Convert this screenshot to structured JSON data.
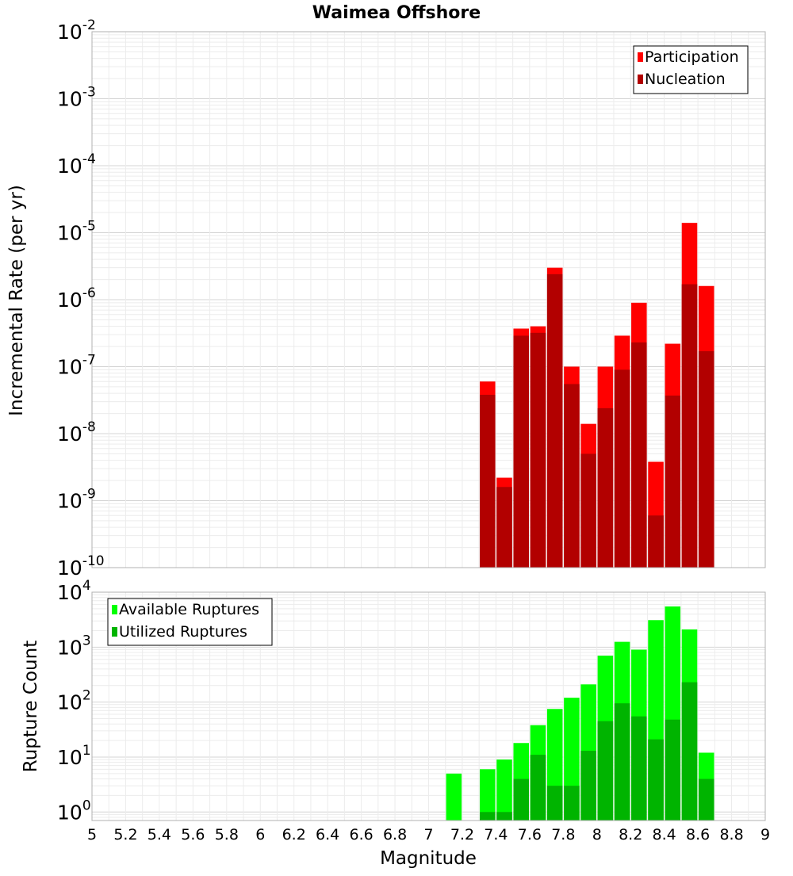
{
  "chart_data": {
    "title": "Waimea Offshore",
    "x_axis": {
      "label": "Magnitude",
      "range": [
        5,
        9
      ],
      "ticks": [
        5,
        5.2,
        5.4,
        5.6,
        5.8,
        6,
        6.2,
        6.4,
        6.6,
        6.8,
        7,
        7.2,
        7.4,
        7.6,
        7.8,
        8,
        8.2,
        8.4,
        8.6,
        8.8,
        9
      ],
      "tick_labels": [
        "5",
        "5.2",
        "5.4",
        "5.6",
        "5.8",
        "6",
        "6.2",
        "6.4",
        "6.6",
        "6.8",
        "7",
        "7.2",
        "7.4",
        "7.6",
        "7.8",
        "8",
        "8.2",
        "8.4",
        "8.6",
        "8.8",
        "9"
      ]
    },
    "panels": [
      {
        "type": "bar",
        "ylabel": "Incremental Rate (per yr)",
        "yscale": "log",
        "ylim": [
          1e-10,
          0.01
        ],
        "yticks": [
          {
            "base": "10",
            "exp": "-2"
          },
          {
            "base": "10",
            "exp": "-3"
          },
          {
            "base": "10",
            "exp": "-4"
          },
          {
            "base": "10",
            "exp": "-5"
          },
          {
            "base": "10",
            "exp": "-6"
          },
          {
            "base": "10",
            "exp": "-7"
          },
          {
            "base": "10",
            "exp": "-8"
          },
          {
            "base": "10",
            "exp": "-9"
          },
          {
            "base": "10",
            "exp": "-10"
          }
        ],
        "grid": true,
        "legend_position": "top-right",
        "x": [
          7.35,
          7.45,
          7.55,
          7.65,
          7.75,
          7.85,
          7.95,
          8.05,
          8.15,
          8.25,
          8.35,
          8.45,
          8.55,
          8.65
        ],
        "series": [
          {
            "name": "Participation",
            "color": "#ff0000",
            "values": [
              6e-08,
              2.2e-09,
              3.7e-07,
              4e-07,
              3e-06,
              1e-07,
              1.4e-08,
              1e-07,
              2.9e-07,
              9e-07,
              3.8e-09,
              2.2e-07,
              1.4e-05,
              1.6e-06
            ]
          },
          {
            "name": "Nucleation",
            "color": "#b20000",
            "values": [
              3.8e-08,
              1.6e-09,
              2.9e-07,
              3.2e-07,
              2.4e-06,
              5.5e-08,
              5e-09,
              2.4e-08,
              9e-08,
              2.3e-07,
              6e-10,
              3.7e-08,
              1.7e-06,
              1.7e-07
            ]
          }
        ]
      },
      {
        "type": "bar",
        "ylabel": "Rupture Count",
        "yscale": "log",
        "ylim": [
          0.7,
          10000
        ],
        "yticks": [
          {
            "base": "10",
            "exp": "4"
          },
          {
            "base": "10",
            "exp": "3"
          },
          {
            "base": "10",
            "exp": "2"
          },
          {
            "base": "10",
            "exp": "1"
          },
          {
            "base": "10",
            "exp": "0"
          }
        ],
        "grid": true,
        "legend_position": "top-left",
        "x": [
          7.15,
          7.35,
          7.45,
          7.55,
          7.65,
          7.75,
          7.85,
          7.95,
          8.05,
          8.15,
          8.25,
          8.35,
          8.45,
          8.55,
          8.65
        ],
        "series": [
          {
            "name": "Available Ruptures",
            "color": "#00ff00",
            "values": [
              5,
              6,
              9,
              18,
              38,
              75,
              120,
              210,
              700,
              1250,
              900,
              3100,
              5500,
              2100,
              12
            ]
          },
          {
            "name": "Utilized Ruptures",
            "color": "#00b400",
            "values": [
              0,
              1,
              1,
              4,
              11,
              3,
              3,
              13,
              45,
              95,
              55,
              21,
              48,
              230,
              4
            ]
          }
        ]
      }
    ]
  }
}
